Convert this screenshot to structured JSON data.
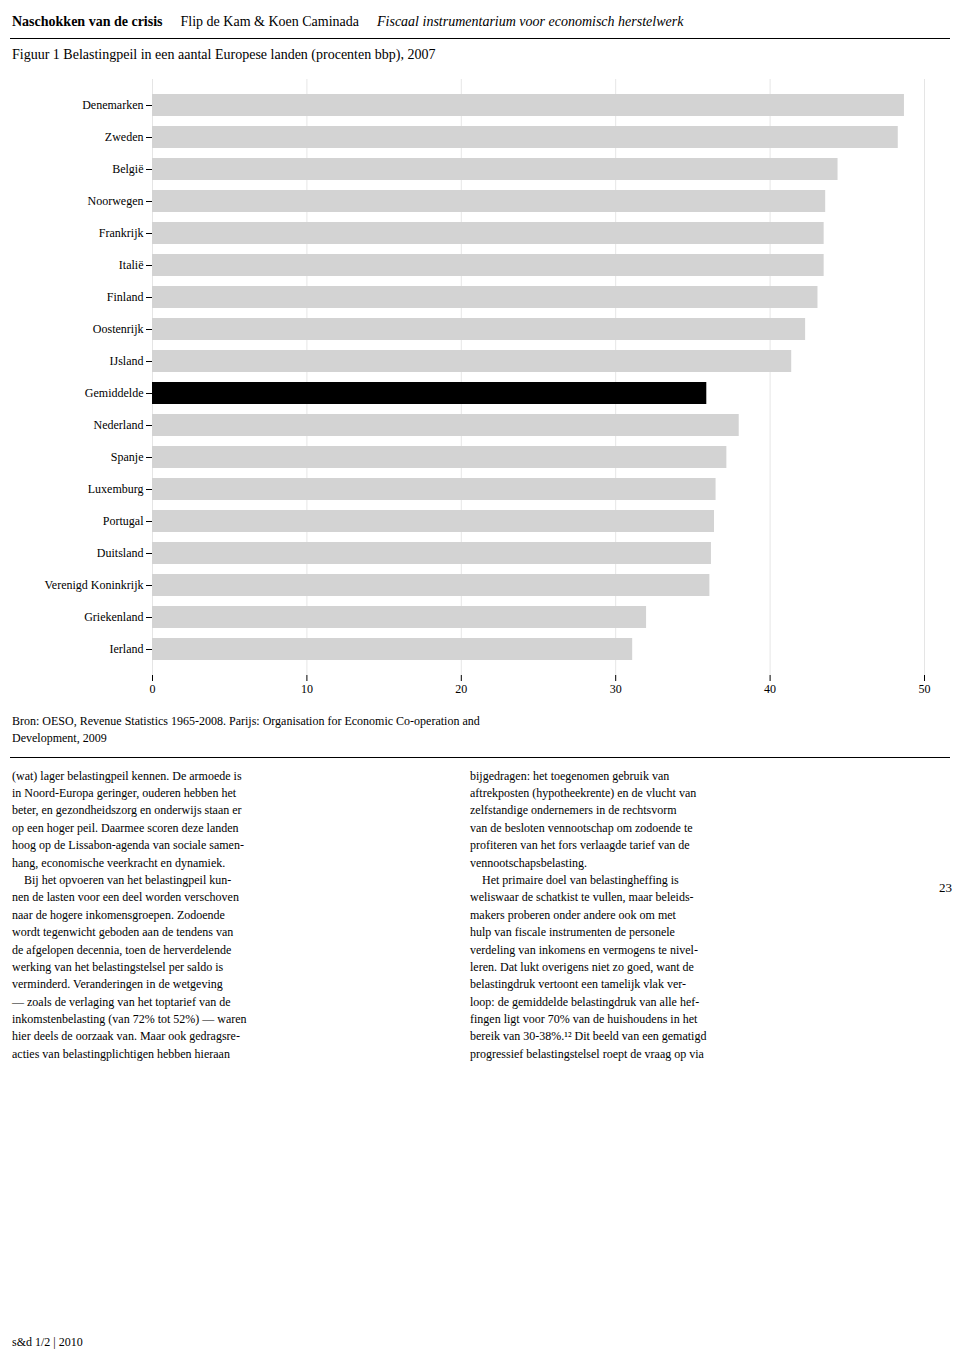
{
  "chart_data": {
    "type": "bar",
    "orientation": "horizontal",
    "title": "Figuur 1  Belastingpeil in een aantal Europese landen (procenten bbp), 2007",
    "categories": [
      "Denemarken",
      "Zweden",
      "België",
      "Noorwegen",
      "Frankrijk",
      "Italië",
      "Finland",
      "Oostenrijk",
      "IJsland",
      "Gemiddelde",
      "Nederland",
      "Spanje",
      "Luxemburg",
      "Portugal",
      "Duitsland",
      "Verenigd Koninkrijk",
      "Griekenland",
      "Ierland"
    ],
    "values": [
      48.7,
      48.3,
      44.4,
      43.6,
      43.5,
      43.5,
      43.1,
      42.3,
      41.4,
      35.9,
      38.0,
      37.2,
      36.5,
      36.4,
      36.2,
      36.1,
      32.0,
      31.1
    ],
    "colors": [
      "#d3d3d3",
      "#d3d3d3",
      "#d3d3d3",
      "#d3d3d3",
      "#d3d3d3",
      "#d3d3d3",
      "#d3d3d3",
      "#d3d3d3",
      "#d3d3d3",
      "#000000",
      "#d3d3d3",
      "#d3d3d3",
      "#d3d3d3",
      "#d3d3d3",
      "#d3d3d3",
      "#d3d3d3",
      "#d3d3d3",
      "#d3d3d3"
    ],
    "xlim": [
      0,
      50
    ],
    "xticks": [
      0,
      10,
      20,
      30,
      40,
      50
    ],
    "grid": true,
    "annotations": [
      "Naschokken van de crisis",
      "Flip de Kam & Koen Caminada",
      "Fiscaal instrumentarium voor economisch herstelwerk",
      "Bron: OESO, Revenue Statistics 1965-2008. Parijs: Organisation for Economic Co-operation and",
      "Development, 2009",
      "(wat) lager belastingpeil kennen. De armoede is\nin Noord-Europa geringer, ouderen hebben het\nbeter, en gezondheidszorg en onderwijs staan er\nop een hoger peil. Daarmee scoren deze landen\nhoog op de Lissabon-agenda van sociale samen-\nhang, economische veerkracht en dynamiek.\n    Bij het opvoeren van het belastingpeil kun-\nnen de lasten voor een deel worden verschoven\nnaar de hogere inkomensgroepen. Zodoende\nwordt tegenwicht geboden aan de tendens van\nde afgelopen decennia, toen de herverdelende\nwerking van het belastingstelsel per saldo is\nverminderd. Veranderingen in de wetgeving\n— zoals de verlaging van het toptarief van de\ninkomstenbelasting (van 72% tot 52%) — waren\nhier deels de oorzaak van. Maar ook gedragsre-\nacties van belastingplichtigen hebben hieraan",
      "bijgedragen: het toegenomen gebruik van\naftrekposten (hypotheekrente) en de vlucht van\nzelfstandige ondernemers in de rechtsvorm\nvan de besloten vennootschap om zodoende te\nprofiteren van het fors verlaagde tarief van de\nvennootschapsbelasting.\n    Het primaire doel van belastingheffing is\nweliswaar de schatkist te vullen, maar beleids-\nmakers proberen onder andere ook om met\nhulp van fiscale instrumenten de personele\nverdeling van inkomens en vermogens te nivel-\nleren. Dat lukt overigens niet zo goed, want de\nbelastingdruk vertoont een tamelijk vlak ver-\nloop: de gemiddelde belastingdruk van alle hef-\nfingen ligt voor 70% van de huishoudens in het\nbereik van 30-38%.¹² Dit beeld van een gematigd\nprogressief belastingstelsel roept de vraag op via",
      "23",
      "s&d 1/2 | 2010"
    ]
  }
}
